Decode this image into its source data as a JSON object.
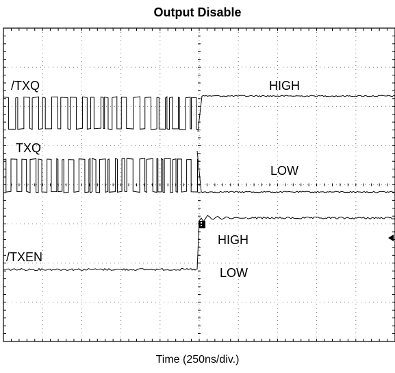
{
  "chart_data": {
    "type": "line",
    "title": "Output Disable",
    "xlabel": "Time (250ns/div.)",
    "ylabel": "",
    "grid": true,
    "divisions": {
      "x": 10,
      "y": 8
    },
    "xlim": [
      0,
      10
    ],
    "transition_div": 5.0,
    "series": [
      {
        "name": "/TXQ",
        "before": "toggling",
        "after": "HIGH"
      },
      {
        "name": "TXQ",
        "before": "toggling",
        "after": "LOW"
      },
      {
        "name": "/TXEN",
        "before": "LOW",
        "after": "HIGH"
      }
    ],
    "annotations": [
      "HIGH",
      "LOW",
      "HIGH",
      "LOW"
    ]
  }
}
